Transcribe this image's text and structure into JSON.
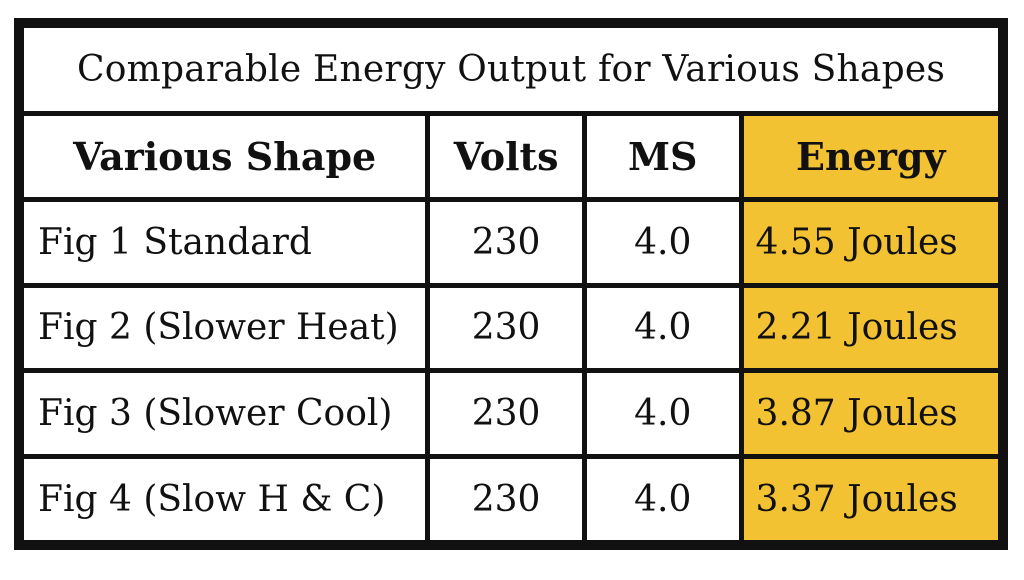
{
  "table": {
    "title": "Comparable Energy Output for Various Shapes",
    "headers": {
      "shape": "Various Shape",
      "volts": "Volts",
      "ms": "MS",
      "energy": "Energy"
    },
    "rows": [
      {
        "shape": "Fig 1 Standard",
        "volts": "230",
        "ms": "4.0",
        "energy": "4.55 Joules"
      },
      {
        "shape": "Fig 2 (Slower Heat)",
        "volts": "230",
        "ms": "4.0",
        "energy": "2.21 Joules"
      },
      {
        "shape": "Fig 3 (Slower Cool)",
        "volts": "230",
        "ms": "4.0",
        "energy": "3.87 Joules"
      },
      {
        "shape": "Fig 4 (Slow H & C)",
        "volts": "230",
        "ms": "4.0",
        "energy": "3.37 Joules"
      }
    ],
    "colors": {
      "energy_highlight": "#f3c233",
      "border": "#111111"
    }
  }
}
